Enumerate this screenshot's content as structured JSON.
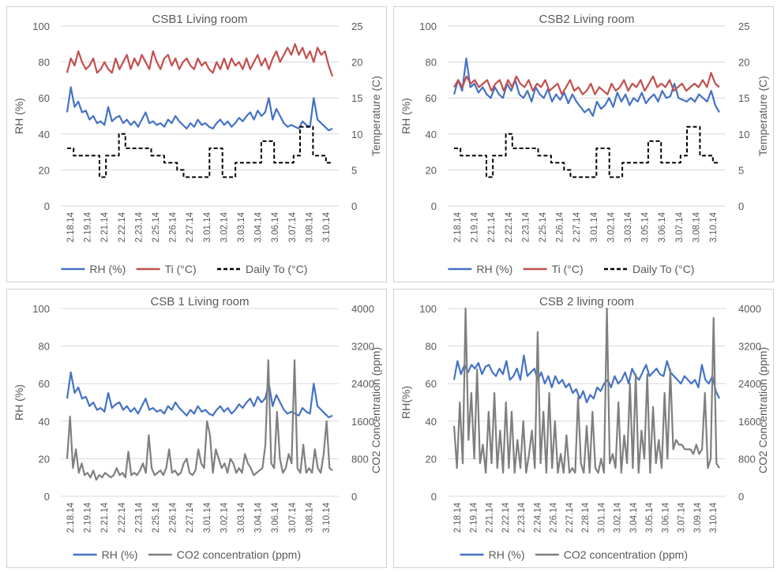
{
  "colors": {
    "rh": "#4472c4",
    "ti": "#c0504d",
    "to": "#000000",
    "co2": "#7f7f7f",
    "grid": "#d9d9d9",
    "text": "#595959"
  },
  "chart_data": [
    {
      "type": "line",
      "title": "CSB1 Living room",
      "ylabel": "RH (%)",
      "y2label": "Temperature (C)",
      "ylim": [
        0,
        100
      ],
      "y2lim": [
        0,
        25
      ],
      "yticks": [
        "0",
        "20",
        "40",
        "60",
        "80",
        "100"
      ],
      "y2ticks": [
        "0",
        "5",
        "10",
        "15",
        "20",
        "25"
      ],
      "xticks": [
        "2.18.14",
        "2.19.14",
        "2.21.14",
        "2.22.14",
        "2.23.14",
        "2.25.14",
        "2.26.14",
        "2.27.14",
        "3.01.14",
        "3.02.14",
        "3.03.14",
        "3.04.14",
        "3.06.14",
        "3.07.14",
        "3.08.14",
        "3.10.14"
      ],
      "legend": [
        "RH (%)",
        "Ti (°C)",
        "Daily To (°C)"
      ],
      "series": [
        {
          "name": "RH (%)",
          "axis": "left",
          "style": "rh",
          "values": [
            52,
            66,
            55,
            58,
            52,
            53,
            48,
            50,
            46,
            47,
            45,
            55,
            47,
            49,
            50,
            46,
            48,
            45,
            47,
            44,
            48,
            52,
            46,
            47,
            45,
            46,
            44,
            48,
            46,
            50,
            47,
            45,
            43,
            46,
            44,
            48,
            45,
            46,
            44,
            43,
            46,
            48,
            45,
            47,
            44,
            46,
            49,
            47,
            50,
            52,
            48,
            53,
            50,
            52,
            60,
            48,
            54,
            50,
            46,
            44,
            45,
            44,
            43,
            47,
            45,
            44,
            60,
            48,
            46,
            44,
            42,
            43
          ]
        },
        {
          "name": "Ti (°C)",
          "axis": "right",
          "style": "ti",
          "values": [
            18.5,
            20.5,
            19.5,
            21.5,
            20,
            19,
            19.5,
            20.5,
            18.5,
            19,
            20,
            19,
            18.5,
            20.5,
            19,
            20,
            21,
            19,
            20.5,
            19.5,
            21,
            20,
            19,
            21.5,
            20,
            19,
            20.5,
            21,
            19.5,
            20.5,
            19,
            20,
            20.5,
            19.5,
            19,
            20.5,
            19.5,
            20,
            19,
            18.5,
            20,
            19,
            20.5,
            19,
            20.5,
            19.5,
            20,
            19,
            20.5,
            19,
            20,
            21,
            19.5,
            20.5,
            19,
            20.5,
            21.5,
            20,
            21,
            22,
            21,
            22.5,
            21,
            22,
            20.5,
            21.5,
            20,
            22,
            21,
            21.5,
            19.5,
            18
          ]
        },
        {
          "name": "Daily To (°C)",
          "axis": "right",
          "style": "to",
          "step": true,
          "values": [
            8,
            7,
            7,
            7,
            7,
            4,
            7,
            7,
            10,
            8,
            8,
            8,
            8,
            7,
            7,
            6,
            6,
            5,
            4,
            4,
            4,
            4,
            8,
            8,
            4,
            4,
            6,
            6,
            6,
            6,
            9,
            9,
            6,
            6,
            6,
            7,
            11,
            11,
            7,
            7,
            6,
            6
          ]
        }
      ]
    },
    {
      "type": "line",
      "title": "CSB2 Living room",
      "ylabel": "RH (%)",
      "y2label": "Temperature (C)",
      "ylim": [
        0,
        100
      ],
      "y2lim": [
        0,
        25
      ],
      "yticks": [
        "0",
        "20",
        "40",
        "60",
        "80",
        "100"
      ],
      "y2ticks": [
        "0",
        "5",
        "10",
        "15",
        "20",
        "25"
      ],
      "xticks": [
        "2.18.14",
        "2.19.14",
        "2.21.14",
        "2.22.14",
        "2.23.14",
        "2.25.14",
        "2.26.14",
        "2.27.14",
        "3.01.14",
        "3.02.14",
        "3.03.14",
        "3.05.14",
        "3.06.14",
        "3.07.14",
        "3.08.14",
        "3.10.14"
      ],
      "legend": [
        "RH (%)",
        "Ti (°C)",
        "Daily To (°C)"
      ],
      "series": [
        {
          "name": "RH (%)",
          "axis": "left",
          "style": "rh",
          "values": [
            62,
            70,
            64,
            82,
            66,
            68,
            63,
            66,
            62,
            60,
            66,
            62,
            60,
            68,
            64,
            70,
            62,
            60,
            64,
            58,
            66,
            62,
            60,
            65,
            58,
            62,
            59,
            63,
            57,
            62,
            58,
            55,
            52,
            54,
            50,
            58,
            54,
            56,
            60,
            55,
            63,
            58,
            62,
            56,
            60,
            58,
            63,
            57,
            60,
            62,
            58,
            64,
            60,
            61,
            68,
            60,
            59,
            58,
            60,
            58,
            62,
            60,
            58,
            64,
            56,
            52
          ]
        },
        {
          "name": "Ti (°C)",
          "axis": "right",
          "style": "ti",
          "values": [
            16.5,
            17.5,
            16.5,
            18,
            17,
            17.5,
            16.5,
            17,
            17.5,
            16,
            17,
            17.5,
            16,
            17.5,
            16.5,
            18,
            17,
            16.5,
            17.5,
            16,
            17,
            16.5,
            17.5,
            16,
            16.5,
            17,
            15.5,
            16.5,
            17.5,
            16,
            16.5,
            15.5,
            16,
            17,
            15.5,
            16.5,
            16,
            15.5,
            17,
            16,
            16.5,
            17.5,
            16,
            17,
            16.5,
            17.5,
            16,
            17,
            18,
            16.5,
            17,
            16.5,
            17.5,
            16,
            16.5,
            17,
            16,
            16.5,
            17,
            16.5,
            17.5,
            16.5,
            18.5,
            17,
            16.5
          ]
        },
        {
          "name": "Daily To (°C)",
          "axis": "right",
          "style": "to",
          "step": true,
          "values": [
            8,
            7,
            7,
            7,
            7,
            4,
            7,
            7,
            10,
            8,
            8,
            8,
            8,
            7,
            7,
            6,
            6,
            5,
            4,
            4,
            4,
            4,
            8,
            8,
            4,
            4,
            6,
            6,
            6,
            6,
            9,
            9,
            6,
            6,
            6,
            7,
            11,
            11,
            7,
            7,
            6,
            6
          ]
        }
      ]
    },
    {
      "type": "line",
      "title": "CSB 1 Living room",
      "ylabel": "RH (%)",
      "y2label": "CO2 Concentration (ppm)",
      "ylim": [
        0,
        100
      ],
      "y2lim": [
        0,
        4000
      ],
      "yticks": [
        "0",
        "20",
        "40",
        "60",
        "80",
        "100"
      ],
      "y2ticks": [
        "0",
        "800",
        "1600",
        "2400",
        "3200",
        "4000"
      ],
      "xticks": [
        "2.18.14",
        "2.19.14",
        "2.21.14",
        "2.22.14",
        "2.23.14",
        "2.25.14",
        "2.26.14",
        "2.27.14",
        "3.01.14",
        "3.02.14",
        "3.03.14",
        "3.04.14",
        "3.06.14",
        "3.07.14",
        "3.08.14",
        "3.10.14"
      ],
      "legend": [
        "RH (%)",
        "CO2 concentration (ppm)"
      ],
      "series": [
        {
          "name": "RH (%)",
          "axis": "left",
          "style": "rh",
          "values": [
            52,
            66,
            55,
            58,
            52,
            53,
            48,
            50,
            46,
            47,
            45,
            55,
            47,
            49,
            50,
            46,
            48,
            45,
            47,
            44,
            48,
            52,
            46,
            47,
            45,
            46,
            44,
            48,
            46,
            50,
            47,
            45,
            43,
            46,
            44,
            48,
            45,
            46,
            44,
            43,
            46,
            48,
            45,
            47,
            44,
            46,
            49,
            47,
            50,
            52,
            48,
            53,
            50,
            52,
            60,
            48,
            54,
            50,
            46,
            44,
            45,
            44,
            43,
            47,
            45,
            44,
            60,
            48,
            46,
            44,
            42,
            43
          ]
        },
        {
          "name": "CO2 concentration (ppm)",
          "axis": "right",
          "style": "co2",
          "values": [
            800,
            1700,
            600,
            1000,
            500,
            700,
            450,
            500,
            400,
            550,
            350,
            450,
            400,
            500,
            450,
            400,
            450,
            600,
            450,
            500,
            400,
            950,
            450,
            500,
            450,
            550,
            700,
            500,
            1300,
            600,
            450,
            500,
            550,
            450,
            600,
            1000,
            500,
            550,
            450,
            500,
            700,
            800,
            500,
            450,
            550,
            1000,
            700,
            600,
            1600,
            1300,
            500,
            1000,
            800,
            600,
            700,
            500,
            800,
            700,
            500,
            600,
            500,
            900,
            700,
            600,
            450,
            500,
            550,
            600,
            1100,
            2900,
            700,
            600,
            1800,
            800,
            500,
            600,
            900,
            700,
            2900,
            600,
            500,
            1100,
            500,
            600,
            500,
            1000,
            600,
            500,
            900,
            1600,
            600,
            550
          ]
        }
      ]
    },
    {
      "type": "line",
      "title": "CSB 2 living room",
      "ylabel": "RH(%)",
      "y2label": "CO2 Concentration (ppm)",
      "ylim": [
        0,
        100
      ],
      "y2lim": [
        0,
        4000
      ],
      "yticks": [
        "0",
        "20",
        "40",
        "60",
        "80",
        "100"
      ],
      "y2ticks": [
        "0",
        "800",
        "1600",
        "2400",
        "3200",
        "4000"
      ],
      "xticks": [
        "2.18.14",
        "2.19.14",
        "2.21.14",
        "2.22.14",
        "2.23.14",
        "2.24.14",
        "2.26.14",
        "2.27.14",
        "2.28.14",
        "3.01.14",
        "3.02.14",
        "3.04.14",
        "3.05.14",
        "3.06.14",
        "3.07.14",
        "3.09.14",
        "3.10.14"
      ],
      "legend": [
        "RH (%)",
        "CO2 concentration (ppm)"
      ],
      "series": [
        {
          "name": "RH (%)",
          "axis": "left",
          "style": "rh",
          "values": [
            62,
            72,
            65,
            70,
            66,
            70,
            68,
            71,
            65,
            69,
            70,
            66,
            64,
            68,
            65,
            72,
            62,
            64,
            68,
            62,
            75,
            64,
            66,
            68,
            62,
            66,
            60,
            64,
            58,
            64,
            60,
            62,
            58,
            60,
            55,
            57,
            52,
            56,
            50,
            54,
            52,
            58,
            56,
            60,
            62,
            58,
            64,
            60,
            62,
            66,
            60,
            68,
            64,
            62,
            66,
            70,
            64,
            66,
            68,
            65,
            64,
            72,
            66,
            64,
            62,
            60,
            64,
            62,
            60,
            62,
            58,
            70,
            62,
            60,
            64,
            56,
            52
          ]
        },
        {
          "name": "CO2 concentration (ppm)",
          "axis": "right",
          "style": "co2",
          "values": [
            1500,
            600,
            2000,
            700,
            4000,
            1200,
            2200,
            800,
            2700,
            700,
            1100,
            500,
            1800,
            700,
            2200,
            600,
            1400,
            500,
            2000,
            600,
            1800,
            500,
            1200,
            600,
            1600,
            500,
            900,
            1400,
            600,
            3500,
            700,
            1800,
            500,
            2200,
            600,
            1600,
            500,
            900,
            500,
            1300,
            500,
            600,
            500,
            2100,
            700,
            500,
            1500,
            500,
            1800,
            600,
            500,
            800,
            500,
            4000,
            700,
            900,
            600,
            2000,
            500,
            1300,
            700,
            2400,
            600,
            2600,
            500,
            1400,
            800,
            2600,
            500,
            1900,
            700,
            1200,
            600,
            2200,
            800,
            2700,
            1000,
            1200,
            1100,
            1100,
            1000,
            1000,
            1000,
            900,
            1100,
            900,
            1000,
            2200,
            600,
            800,
            3800,
            700,
            600
          ]
        }
      ]
    }
  ]
}
